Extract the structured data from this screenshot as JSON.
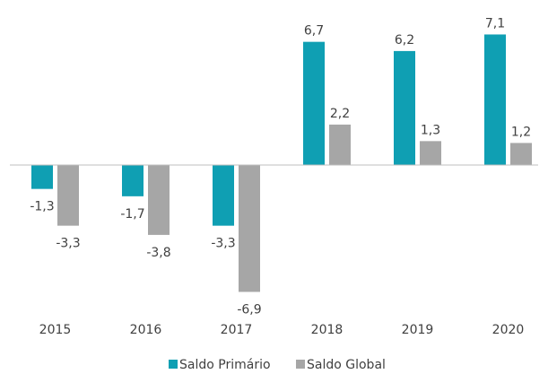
{
  "chart_data": {
    "type": "bar",
    "categories": [
      "2015",
      "2016",
      "2017",
      "2018",
      "2019",
      "2020"
    ],
    "series": [
      {
        "name": "Saldo Primário",
        "color": "#0f9fb3",
        "values": [
          -1.3,
          -1.7,
          -3.3,
          6.7,
          6.2,
          7.1
        ],
        "value_labels": [
          "-1,3",
          "-1,7",
          "-3,3",
          "6,7",
          "6,2",
          "7,1"
        ]
      },
      {
        "name": "Saldo Global",
        "color": "#a6a6a6",
        "values": [
          -3.3,
          -3.8,
          -6.9,
          2.2,
          1.3,
          1.2
        ],
        "value_labels": [
          "-3,3",
          "-3,8",
          "-6,9",
          "2,2",
          "1,3",
          "1,2"
        ]
      }
    ],
    "ylim": [
      -8,
      8
    ],
    "legend": "bottom"
  }
}
